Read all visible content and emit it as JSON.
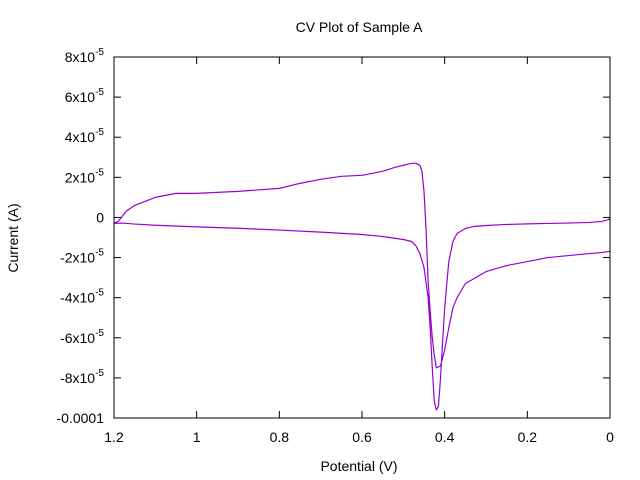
{
  "chart_data": {
    "type": "line",
    "title": "CV Plot of Sample A",
    "xlabel": "Potential (V)",
    "ylabel": "Current (A)",
    "xlim": [
      1.2,
      0
    ],
    "ylim": [
      -0.0001,
      8e-05
    ],
    "x_reversed": true,
    "grid": false,
    "legend": "none",
    "x_ticks": [
      {
        "value": 1.2,
        "label": "1.2"
      },
      {
        "value": 1.0,
        "label": "1"
      },
      {
        "value": 0.8,
        "label": "0.8"
      },
      {
        "value": 0.6,
        "label": "0.6"
      },
      {
        "value": 0.4,
        "label": "0.4"
      },
      {
        "value": 0.2,
        "label": "0.2"
      },
      {
        "value": 0.0,
        "label": "0"
      }
    ],
    "y_ticks": [
      {
        "value": 8e-05,
        "base": "8x10",
        "exp": "-5"
      },
      {
        "value": 6e-05,
        "base": "6x10",
        "exp": "-5"
      },
      {
        "value": 4e-05,
        "base": "4x10",
        "exp": "-5"
      },
      {
        "value": 2e-05,
        "base": "2x10",
        "exp": "-5"
      },
      {
        "value": 0,
        "base": "0",
        "exp": ""
      },
      {
        "value": -2e-05,
        "base": "-2x10",
        "exp": "-5"
      },
      {
        "value": -4e-05,
        "base": "-4x10",
        "exp": "-5"
      },
      {
        "value": -6e-05,
        "base": "-6x10",
        "exp": "-5"
      },
      {
        "value": -8e-05,
        "base": "-8x10",
        "exp": "-5"
      },
      {
        "value": -0.0001,
        "base": "-0.0001",
        "exp": ""
      }
    ],
    "series": [
      {
        "color": "#9400d3",
        "x": [
          0.0,
          0.005,
          0.02,
          0.05,
          0.1,
          0.15,
          0.2,
          0.25,
          0.3,
          0.33,
          0.35,
          0.37,
          0.38,
          0.39,
          0.4,
          0.405,
          0.41,
          0.415,
          0.42,
          0.425,
          0.43,
          0.435,
          0.44,
          0.45,
          0.46,
          0.47,
          0.48,
          0.5,
          0.55,
          0.6,
          0.7,
          0.8,
          0.9,
          1.0,
          1.1,
          1.15,
          1.18,
          1.2,
          1.19,
          1.17,
          1.15,
          1.1,
          1.05,
          1.0,
          0.9,
          0.8,
          0.75,
          0.7,
          0.65,
          0.6,
          0.55,
          0.52,
          0.5,
          0.48,
          0.47,
          0.46,
          0.455,
          0.45,
          0.445,
          0.44,
          0.435,
          0.43,
          0.425,
          0.42,
          0.41,
          0.4,
          0.39,
          0.38,
          0.37,
          0.35,
          0.3,
          0.25,
          0.2,
          0.15,
          0.1,
          0.05,
          0.02,
          0.005,
          0.0
        ],
        "y": [
          -5e-07,
          -1.2e-06,
          -2e-06,
          -2.5e-06,
          -2.8e-06,
          -3e-06,
          -3.2e-06,
          -3.5e-06,
          -4e-06,
          -4.5e-06,
          -5.5e-06,
          -8e-06,
          -1.2e-05,
          -2.2e-05,
          -4.5e-05,
          -6.2e-05,
          -8e-05,
          -9.4e-05,
          -9.6e-05,
          -9.2e-05,
          -7.5e-05,
          -5.5e-05,
          -4e-05,
          -2.5e-05,
          -1.8e-05,
          -1.4e-05,
          -1.2e-05,
          -1.1e-05,
          -9.5e-06,
          -8.5e-06,
          -7.3e-06,
          -6.3e-06,
          -5.4e-06,
          -4.7e-06,
          -3.9e-06,
          -3.3e-06,
          -2.8e-06,
          -3e-06,
          -2e-06,
          3.2e-06,
          6e-06,
          1e-05,
          1.2e-05,
          1.2e-05,
          1.3e-05,
          1.45e-05,
          1.7e-05,
          1.9e-05,
          2.05e-05,
          2.1e-05,
          2.3e-05,
          2.5e-05,
          2.6e-05,
          2.7e-05,
          2.7e-05,
          2.6e-05,
          2.3e-05,
          1.3e-05,
          -6e-06,
          -3.2e-05,
          -4.7e-05,
          -6e-05,
          -6.9e-05,
          -7.5e-05,
          -7.4e-05,
          -6.6e-05,
          -5.5e-05,
          -4.5e-05,
          -4e-05,
          -3.3e-05,
          -2.7e-05,
          -2.4e-05,
          -2.2e-05,
          -2e-05,
          -1.9e-05,
          -1.8e-05,
          -1.75e-05,
          -1.7e-05,
          -1.7e-05
        ]
      }
    ]
  }
}
